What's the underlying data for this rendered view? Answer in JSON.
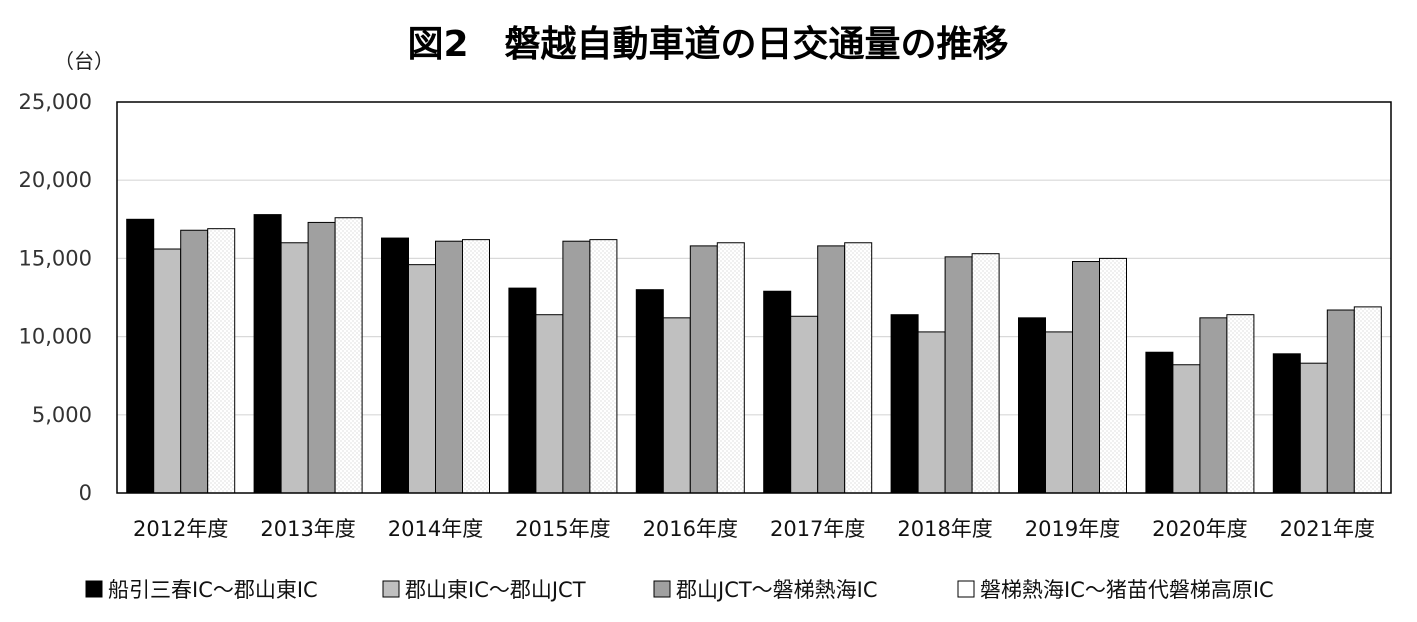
{
  "chart_data": {
    "type": "bar",
    "title": "図2　磐越自動車道の日交通量の推移",
    "ylabel": "（台）",
    "xlabel": "",
    "ylim": [
      0,
      25000
    ],
    "yticks": [
      "0",
      "5,000",
      "10,000",
      "15,000",
      "20,000",
      "25,000"
    ],
    "ytick_values": [
      0,
      5000,
      10000,
      15000,
      20000,
      25000
    ],
    "grid": true,
    "legend_position": "bottom",
    "categories": [
      "2012年度",
      "2013年度",
      "2014年度",
      "2015年度",
      "2016年度",
      "2017年度",
      "2018年度",
      "2019年度",
      "2020年度",
      "2021年度"
    ],
    "series": [
      {
        "name": "船引三春IC～郡山東IC",
        "color": "#000000",
        "values": [
          17500,
          17800,
          16300,
          13100,
          13000,
          12900,
          11400,
          11200,
          9000,
          8900
        ]
      },
      {
        "name": "郡山東IC～郡山JCT",
        "color": "#c0c0c0",
        "values": [
          15600,
          16000,
          14600,
          11400,
          11200,
          11300,
          10300,
          10300,
          8200,
          8300
        ]
      },
      {
        "name": "郡山JCT～磐梯熱海IC",
        "color": "#a0a0a0",
        "values": [
          16800,
          17300,
          16100,
          16100,
          15800,
          15800,
          15100,
          14800,
          11200,
          11700
        ]
      },
      {
        "name": "磐梯熱海IC～猪苗代磐梯高原IC",
        "color": "#f4f4f4",
        "values": [
          16900,
          17600,
          16200,
          16200,
          16000,
          16000,
          15300,
          15000,
          11400,
          11900
        ]
      }
    ]
  }
}
